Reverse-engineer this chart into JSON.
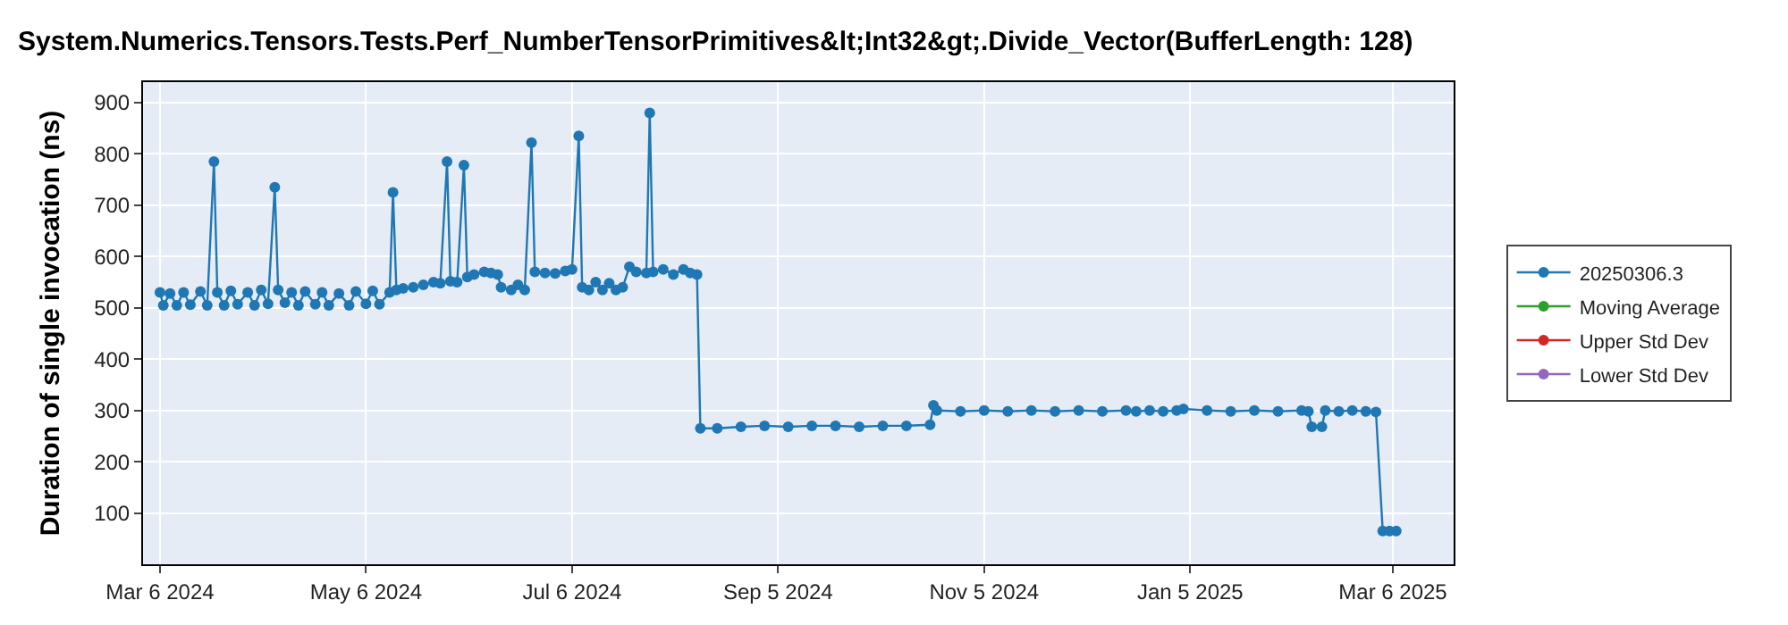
{
  "chart_data": {
    "type": "line",
    "title": "System.Numerics.Tensors.Tests.Perf_NumberTensorPrimitives&lt;Int32&gt;.Divide_Vector(BufferLength: 128)",
    "ylabel": "Duration of single invocation (ns)",
    "x": [
      "2024-03-06",
      "2024-03-07",
      "2024-03-09",
      "2024-03-11",
      "2024-03-13",
      "2024-03-15",
      "2024-03-18",
      "2024-03-20",
      "2024-03-22",
      "2024-03-23",
      "2024-03-25",
      "2024-03-27",
      "2024-03-29",
      "2024-04-01",
      "2024-04-03",
      "2024-04-05",
      "2024-04-07",
      "2024-04-09",
      "2024-04-10",
      "2024-04-12",
      "2024-04-14",
      "2024-04-16",
      "2024-04-18",
      "2024-04-21",
      "2024-04-23",
      "2024-04-25",
      "2024-04-28",
      "2024-05-01",
      "2024-05-03",
      "2024-05-06",
      "2024-05-08",
      "2024-05-10",
      "2024-05-13",
      "2024-05-14",
      "2024-05-15",
      "2024-05-17",
      "2024-05-20",
      "2024-05-23",
      "2024-05-26",
      "2024-05-28",
      "2024-05-30",
      "2024-05-31",
      "2024-06-02",
      "2024-06-04",
      "2024-06-05",
      "2024-06-07",
      "2024-06-10",
      "2024-06-12",
      "2024-06-14",
      "2024-06-15",
      "2024-06-18",
      "2024-06-20",
      "2024-06-22",
      "2024-06-24",
      "2024-06-25",
      "2024-06-28",
      "2024-07-01",
      "2024-07-04",
      "2024-07-06",
      "2024-07-08",
      "2024-07-09",
      "2024-07-11",
      "2024-07-13",
      "2024-07-15",
      "2024-07-17",
      "2024-07-19",
      "2024-07-21",
      "2024-07-23",
      "2024-07-25",
      "2024-07-28",
      "2024-07-29",
      "2024-07-30",
      "2024-08-02",
      "2024-08-05",
      "2024-08-08",
      "2024-08-10",
      "2024-08-12",
      "2024-08-13",
      "2024-08-18",
      "2024-08-25",
      "2024-09-01",
      "2024-09-08",
      "2024-09-15",
      "2024-09-22",
      "2024-09-29",
      "2024-10-06",
      "2024-10-13",
      "2024-10-20",
      "2024-10-21",
      "2024-10-22",
      "2024-10-29",
      "2024-11-05",
      "2024-11-12",
      "2024-11-19",
      "2024-11-26",
      "2024-12-03",
      "2024-12-10",
      "2024-12-17",
      "2024-12-20",
      "2024-12-24",
      "2024-12-28",
      "2025-01-01",
      "2025-01-03",
      "2025-01-10",
      "2025-01-17",
      "2025-01-24",
      "2025-01-31",
      "2025-02-07",
      "2025-02-09",
      "2025-02-10",
      "2025-02-13",
      "2025-02-14",
      "2025-02-18",
      "2025-02-22",
      "2025-02-26",
      "2025-03-01",
      "2025-03-03",
      "2025-03-05",
      "2025-03-07"
    ],
    "series": [
      {
        "name": "20250306.3",
        "color": "#1f77b4",
        "values": [
          530,
          505,
          528,
          505,
          530,
          506,
          532,
          505,
          785,
          530,
          505,
          533,
          507,
          530,
          505,
          535,
          508,
          735,
          535,
          510,
          530,
          505,
          532,
          507,
          530,
          505,
          528,
          505,
          532,
          508,
          533,
          507,
          530,
          725,
          535,
          538,
          540,
          545,
          550,
          548,
          785,
          552,
          550,
          778,
          560,
          565,
          570,
          568,
          565,
          540,
          535,
          545,
          535,
          822,
          570,
          568,
          567,
          572,
          575,
          835,
          540,
          535,
          550,
          535,
          548,
          535,
          540,
          580,
          570,
          568,
          880,
          570,
          575,
          565,
          575,
          568,
          565,
          265,
          265,
          268,
          270,
          268,
          270,
          270,
          268,
          270,
          270,
          272,
          310,
          300,
          298,
          300,
          298,
          300,
          298,
          300,
          298,
          300,
          298,
          300,
          298,
          300,
          303,
          300,
          298,
          300,
          298,
          300,
          298,
          268,
          268,
          300,
          298,
          300,
          298,
          297,
          65,
          65,
          65
        ]
      },
      {
        "name": "Moving Average",
        "color": "#2ca02c",
        "values": [
          null,
          null,
          null,
          null,
          null,
          null,
          null,
          null,
          null,
          null,
          null,
          null,
          null,
          null,
          null,
          null,
          null,
          null,
          null,
          null,
          null,
          null,
          null,
          null,
          null,
          null,
          null,
          null,
          null,
          null,
          null,
          null,
          null,
          null,
          null,
          null,
          null,
          null,
          null,
          null,
          null,
          null,
          null,
          null,
          null,
          null,
          null,
          null,
          null,
          null,
          null,
          null,
          null,
          null,
          null,
          null,
          null,
          null,
          null,
          null,
          null,
          null,
          null,
          null,
          null,
          null,
          null,
          null,
          null,
          null,
          null,
          null,
          null,
          null,
          null,
          null,
          null,
          null,
          null,
          null,
          null,
          null,
          null,
          null,
          null,
          null,
          null,
          null,
          null,
          null,
          null,
          null,
          null,
          null,
          null,
          null,
          null,
          null,
          null,
          null,
          null,
          null,
          null,
          null,
          null,
          null,
          null,
          null,
          null,
          null,
          null,
          null,
          null,
          null,
          null,
          null,
          null,
          null,
          null
        ]
      },
      {
        "name": "Upper Std Dev",
        "color": "#d62728",
        "values": [
          null,
          null,
          null,
          null,
          null,
          null,
          null,
          null,
          null,
          null,
          null,
          null,
          null,
          null,
          null,
          null,
          null,
          null,
          null,
          null,
          null,
          null,
          null,
          null,
          null,
          null,
          null,
          null,
          null,
          null,
          null,
          null,
          null,
          null,
          null,
          null,
          null,
          null,
          null,
          null,
          null,
          null,
          null,
          null,
          null,
          null,
          null,
          null,
          null,
          null,
          null,
          null,
          null,
          null,
          null,
          null,
          null,
          null,
          null,
          null,
          null,
          null,
          null,
          null,
          null,
          null,
          null,
          null,
          null,
          null,
          null,
          null,
          null,
          null,
          null,
          null,
          null,
          null,
          null,
          null,
          null,
          null,
          null,
          null,
          null,
          null,
          null,
          null,
          null,
          null,
          null,
          null,
          null,
          null,
          null,
          null,
          null,
          null,
          null,
          null,
          null,
          null,
          null,
          null,
          null,
          null,
          null,
          null,
          null,
          null,
          null,
          null,
          null,
          null,
          null,
          null,
          null,
          null,
          null
        ]
      },
      {
        "name": "Lower Std Dev",
        "color": "#9467bd",
        "values": [
          null,
          null,
          null,
          null,
          null,
          null,
          null,
          null,
          null,
          null,
          null,
          null,
          null,
          null,
          null,
          null,
          null,
          null,
          null,
          null,
          null,
          null,
          null,
          null,
          null,
          null,
          null,
          null,
          null,
          null,
          null,
          null,
          null,
          null,
          null,
          null,
          null,
          null,
          null,
          null,
          null,
          null,
          null,
          null,
          null,
          null,
          null,
          null,
          null,
          null,
          null,
          null,
          null,
          null,
          null,
          null,
          null,
          null,
          null,
          null,
          null,
          null,
          null,
          null,
          null,
          null,
          null,
          null,
          null,
          null,
          null,
          null,
          null,
          null,
          null,
          null,
          null,
          null,
          null,
          null,
          null,
          null,
          null,
          null,
          null,
          null,
          null,
          null,
          null,
          null,
          null,
          null,
          null,
          null,
          null,
          null,
          null,
          null,
          null,
          null,
          null,
          null,
          null,
          null,
          null,
          null,
          null,
          null,
          null,
          null,
          null,
          null,
          null,
          null,
          null,
          null,
          null,
          null,
          null
        ]
      }
    ],
    "xlim": [
      "2024-03-01",
      "2025-03-24"
    ],
    "xticks": [
      {
        "value": "2024-03-06",
        "label": "Mar 6 2024"
      },
      {
        "value": "2024-05-06",
        "label": "May 6 2024"
      },
      {
        "value": "2024-07-06",
        "label": "Jul 6 2024"
      },
      {
        "value": "2024-09-05",
        "label": "Sep 5 2024"
      },
      {
        "value": "2024-11-05",
        "label": "Nov 5 2024"
      },
      {
        "value": "2025-01-05",
        "label": "Jan 5 2025"
      },
      {
        "value": "2025-03-06",
        "label": "Mar 6 2025"
      }
    ],
    "ylim": [
      0,
      940
    ],
    "yticks": [
      100,
      200,
      300,
      400,
      500,
      600,
      700,
      800,
      900
    ],
    "grid": true,
    "legend": "right",
    "marker": "circle",
    "line_style": "solid"
  }
}
